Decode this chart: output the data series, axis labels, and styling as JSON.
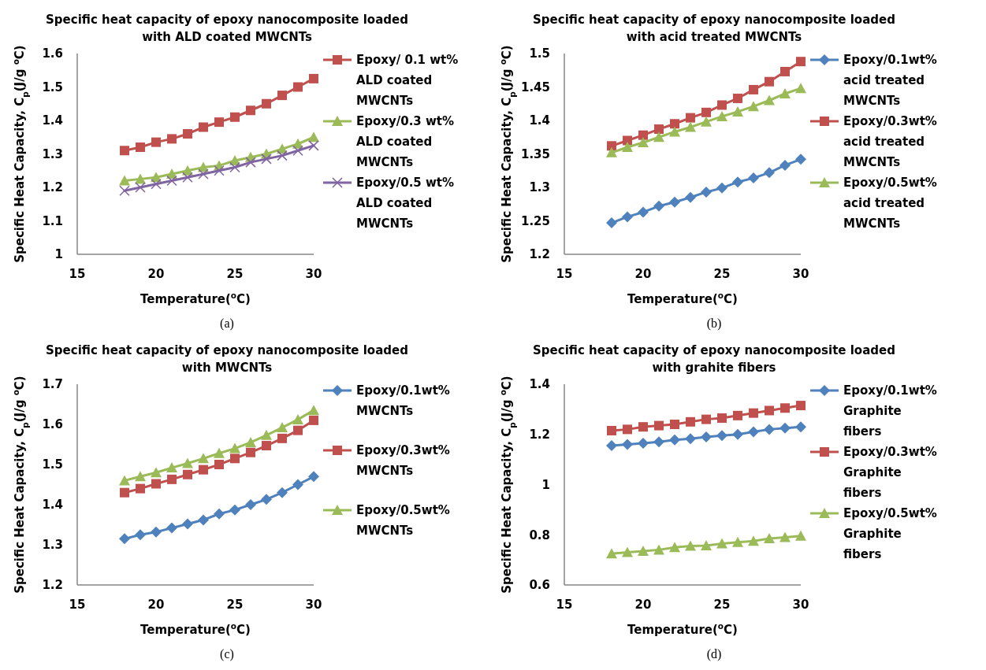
{
  "chart_data": [
    {
      "type": "line",
      "title": "Specific heat capacity of epoxy nanocomposite loaded with ALD coated MWCNTs",
      "xlabel": "Temperature($^{o}$C)",
      "ylabel": "Specific Heat Capacity, C$_{p}$(J/g $^{o}$C)",
      "annotations": [
        "(a)"
      ],
      "legend": "right",
      "line_style": "solid",
      "xlim": [
        15,
        30
      ],
      "xticks": [
        15,
        20,
        25,
        30
      ],
      "ylim": [
        1,
        1.6
      ],
      "yticks": [
        1,
        1.1,
        1.2,
        1.3,
        1.4,
        1.5,
        1.6
      ],
      "x": [
        18,
        19,
        20,
        21,
        22,
        23,
        24,
        25,
        26,
        27,
        28,
        29,
        30
      ],
      "series": [
        {
          "name": "Epoxy/ 0.1 wt% ALD coated MWCNTs",
          "color": "#c0504d",
          "marker": "square",
          "values": [
            1.31,
            1.32,
            1.335,
            1.345,
            1.36,
            1.38,
            1.395,
            1.41,
            1.43,
            1.45,
            1.475,
            1.5,
            1.525
          ]
        },
        {
          "name": "Epoxy/0.3 wt% ALD coated MWCNTs",
          "color": "#9bbb59",
          "marker": "triangle",
          "values": [
            1.22,
            1.225,
            1.23,
            1.24,
            1.25,
            1.26,
            1.265,
            1.28,
            1.29,
            1.3,
            1.315,
            1.33,
            1.35
          ]
        },
        {
          "name": "Epoxy/0.5 wt% ALD coated MWCNTs",
          "color": "#8064a2",
          "marker": "cross",
          "values": [
            1.19,
            1.2,
            1.21,
            1.22,
            1.23,
            1.24,
            1.25,
            1.26,
            1.275,
            1.285,
            1.295,
            1.31,
            1.325
          ]
        }
      ]
    },
    {
      "type": "line",
      "title": "Specific heat capacity of epoxy nanocomposite loaded with acid treated MWCNTs",
      "xlabel": "Temperature($^{o}$C)",
      "ylabel": "Specific Heat Capacity, C$_{p}$(J/g $^{o}$C)",
      "annotations": [
        "(b)"
      ],
      "legend": "right",
      "line_style": "solid",
      "xlim": [
        15,
        30
      ],
      "xticks": [
        15,
        20,
        25,
        30
      ],
      "ylim": [
        1.2,
        1.5
      ],
      "yticks": [
        1.2,
        1.25,
        1.3,
        1.35,
        1.4,
        1.45,
        1.5
      ],
      "x": [
        18,
        19,
        20,
        21,
        22,
        23,
        24,
        25,
        26,
        27,
        28,
        29,
        30
      ],
      "series": [
        {
          "name": "Epoxy/0.1wt% acid treated MWCNTs",
          "color": "#4f81bd",
          "marker": "diamond",
          "values": [
            1.247,
            1.256,
            1.263,
            1.272,
            1.278,
            1.285,
            1.293,
            1.299,
            1.308,
            1.314,
            1.322,
            1.333,
            1.342
          ]
        },
        {
          "name": "Epoxy/0.3wt% acid treated MWCNTs",
          "color": "#c0504d",
          "marker": "square",
          "values": [
            1.362,
            1.37,
            1.378,
            1.387,
            1.395,
            1.404,
            1.412,
            1.423,
            1.433,
            1.446,
            1.458,
            1.473,
            1.488
          ]
        },
        {
          "name": "Epoxy/0.5wt% acid treated MWCNTs",
          "color": "#9bbb59",
          "marker": "triangle",
          "values": [
            1.352,
            1.36,
            1.367,
            1.375,
            1.383,
            1.39,
            1.398,
            1.406,
            1.413,
            1.421,
            1.43,
            1.44,
            1.448
          ]
        }
      ]
    },
    {
      "type": "line",
      "title": "Specific heat capacity of epoxy nanocomposite loaded with MWCNTs",
      "xlabel": "Temperature($^{o}$C)",
      "ylabel": "Specific Heat Capacity, C$_{p}$(J/g $^{o}$C)",
      "annotations": [
        "(c)"
      ],
      "legend": "right",
      "line_style": "solid",
      "xlim": [
        15,
        30
      ],
      "xticks": [
        15,
        20,
        25,
        30
      ],
      "ylim": [
        1.2,
        1.7
      ],
      "yticks": [
        1.2,
        1.3,
        1.4,
        1.5,
        1.6,
        1.7
      ],
      "x": [
        18,
        19,
        20,
        21,
        22,
        23,
        24,
        25,
        26,
        27,
        28,
        29,
        30
      ],
      "series": [
        {
          "name": "Epoxy/0.1wt% MWCNTs",
          "color": "#4f81bd",
          "marker": "diamond",
          "values": [
            1.315,
            1.325,
            1.332,
            1.342,
            1.352,
            1.362,
            1.377,
            1.387,
            1.4,
            1.413,
            1.43,
            1.45,
            1.47
          ]
        },
        {
          "name": "Epoxy/0.3wt% MWCNTs",
          "color": "#c0504d",
          "marker": "square",
          "values": [
            1.43,
            1.44,
            1.452,
            1.463,
            1.475,
            1.487,
            1.5,
            1.515,
            1.53,
            1.547,
            1.565,
            1.585,
            1.61
          ]
        },
        {
          "name": "Epoxy/0.5wt% MWCNTs",
          "color": "#9bbb59",
          "marker": "triangle",
          "values": [
            1.46,
            1.47,
            1.48,
            1.492,
            1.503,
            1.515,
            1.528,
            1.54,
            1.555,
            1.573,
            1.592,
            1.612,
            1.635
          ]
        }
      ]
    },
    {
      "type": "line",
      "title": "Specific heat capacity of epoxy nanocomposite loaded with grahite fibers",
      "xlabel": "Temperature($^{o}$C)",
      "ylabel": "Specific Heat Capacity, C$_{p}$(J/g $^{o}$C)",
      "annotations": [
        "(d)"
      ],
      "legend": "right",
      "line_style": "solid",
      "xlim": [
        15,
        30
      ],
      "xticks": [
        15,
        20,
        25,
        30
      ],
      "ylim": [
        0.6,
        1.4
      ],
      "yticks": [
        0.6,
        0.8,
        1,
        1.2,
        1.4
      ],
      "x": [
        18,
        19,
        20,
        21,
        22,
        23,
        24,
        25,
        26,
        27,
        28,
        29,
        30
      ],
      "series": [
        {
          "name": "Epoxy/0.1wt% Graphite fibers",
          "color": "#4f81bd",
          "marker": "diamond",
          "values": [
            1.155,
            1.16,
            1.165,
            1.17,
            1.178,
            1.183,
            1.19,
            1.195,
            1.2,
            1.21,
            1.22,
            1.225,
            1.23
          ]
        },
        {
          "name": "Epoxy/0.3wt% Graphite fibers",
          "color": "#c0504d",
          "marker": "square",
          "values": [
            1.215,
            1.22,
            1.23,
            1.235,
            1.24,
            1.25,
            1.26,
            1.265,
            1.275,
            1.285,
            1.295,
            1.305,
            1.315
          ]
        },
        {
          "name": "Epoxy/0.5wt% Graphite fibers",
          "color": "#9bbb59",
          "marker": "triangle",
          "values": [
            0.725,
            0.73,
            0.735,
            0.74,
            0.75,
            0.755,
            0.757,
            0.765,
            0.77,
            0.775,
            0.785,
            0.79,
            0.795
          ]
        }
      ]
    }
  ]
}
